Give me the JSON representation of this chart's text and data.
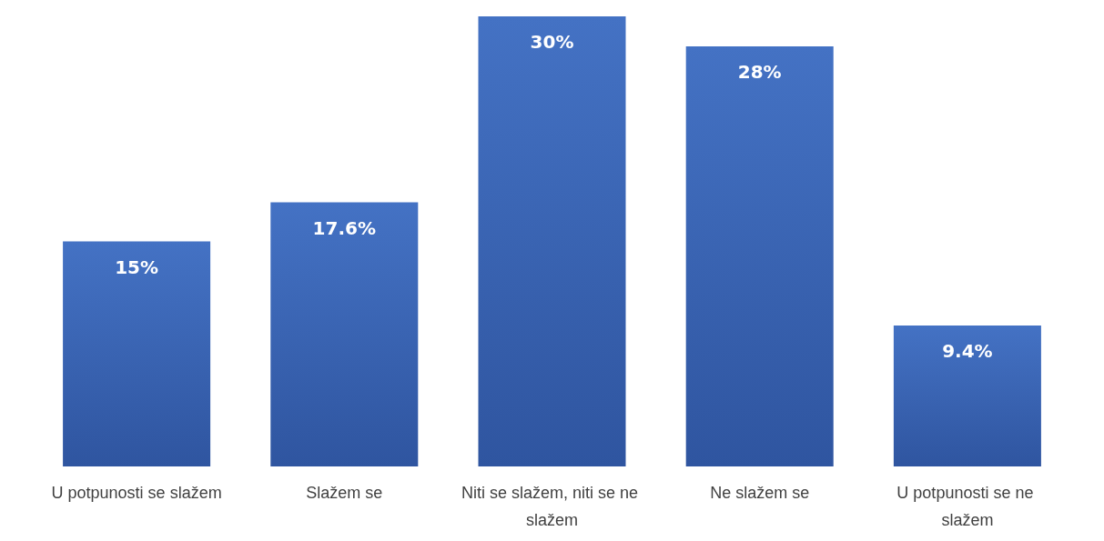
{
  "chart_data": {
    "type": "bar",
    "categories": [
      "U potpunosti se slažem",
      "Slažem se",
      "Niti se slažem, niti se ne slažem",
      "Ne slažem se",
      "U potpunosti se ne slažem"
    ],
    "values": [
      15,
      17.6,
      30,
      28,
      9.4
    ],
    "value_labels": [
      "15%",
      "17.6%",
      "30%",
      "28%",
      "9.4%"
    ],
    "color": "#4472c4",
    "grid": false
  }
}
